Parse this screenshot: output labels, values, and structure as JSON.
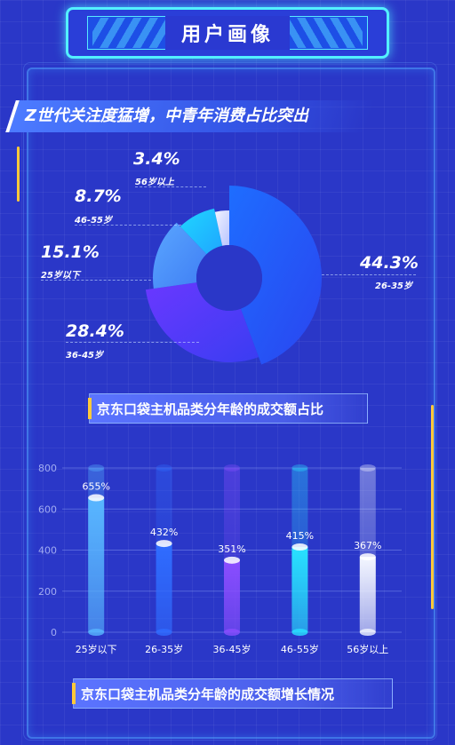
{
  "header": {
    "title": "用户画像"
  },
  "headline": "Z世代关注度猛增，中青年消费占比突出",
  "donut": {
    "caption": "京东口袋主机品类分年龄的成交额占比",
    "slices": [
      {
        "label": "26-35岁",
        "value": 44.3,
        "pct_text": "44.3%",
        "color_a": "#1e6dff",
        "color_b": "#2a45f0"
      },
      {
        "label": "36-45岁",
        "value": 28.4,
        "pct_text": "28.4%",
        "color_a": "#6a38ff",
        "color_b": "#3a3df2"
      },
      {
        "label": "25岁以下",
        "value": 15.1,
        "pct_text": "15.1%",
        "color_a": "#5aa6ff",
        "color_b": "#3f7ef4"
      },
      {
        "label": "46-55岁",
        "value": 8.7,
        "pct_text": "8.7%",
        "color_a": "#1fd6ff",
        "color_b": "#1fa6ff"
      },
      {
        "label": "56岁以上",
        "value": 3.4,
        "pct_text": "3.4%",
        "color_a": "#f2f4ff",
        "color_b": "#b8c4ff"
      }
    ]
  },
  "chart_data": {
    "type": "bar",
    "caption": "京东口袋主机品类分年龄的成交额增长情况",
    "categories": [
      "25岁以下",
      "26-35岁",
      "36-45岁",
      "46-55岁",
      "56岁以上"
    ],
    "values": [
      655,
      432,
      351,
      415,
      367
    ],
    "value_labels": [
      "655%",
      "432%",
      "351%",
      "415%",
      "367%"
    ],
    "ylim": [
      0,
      800
    ],
    "yticks": [
      "0",
      "200",
      "400",
      "600",
      "800"
    ],
    "colors": [
      "#58b6ff",
      "#2f6cff",
      "#8a4dff",
      "#28e2ff",
      "#f3f6ff"
    ],
    "grid": true
  }
}
